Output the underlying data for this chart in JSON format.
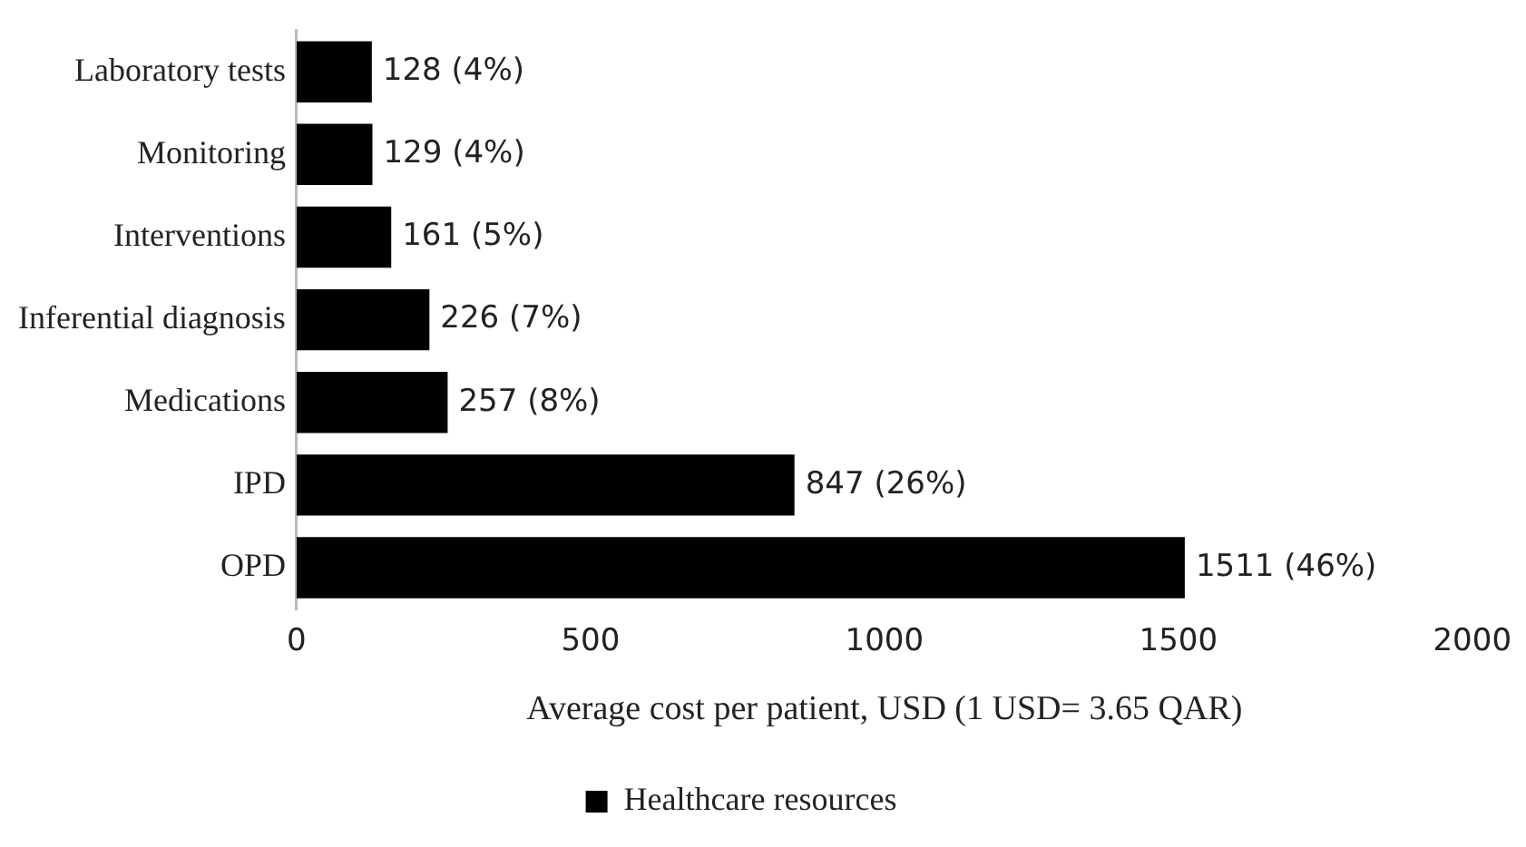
{
  "chart_data": {
    "type": "bar",
    "orientation": "horizontal",
    "xlabel": "Average cost per patient, USD (1 USD= 3.65 QAR)",
    "categories": [
      "Laboratory tests",
      "Monitoring",
      "Interventions",
      "Inferential diagnosis",
      "Medications",
      "IPD",
      "OPD"
    ],
    "series": [
      {
        "name": "Healthcare resources",
        "color": "#000000",
        "values": [
          128,
          129,
          161,
          226,
          257,
          847,
          1511
        ],
        "value_labels": [
          "128 (4%)",
          "129 (4%)",
          "161 (5%)",
          "226 (7%)",
          "257 (8%)",
          "847 (26%)",
          "1511 (46%)"
        ]
      }
    ],
    "xlim": [
      0,
      2000
    ],
    "xticks": [
      0,
      500,
      1000,
      1500,
      2000
    ],
    "grid": false,
    "legend": "bottom"
  }
}
